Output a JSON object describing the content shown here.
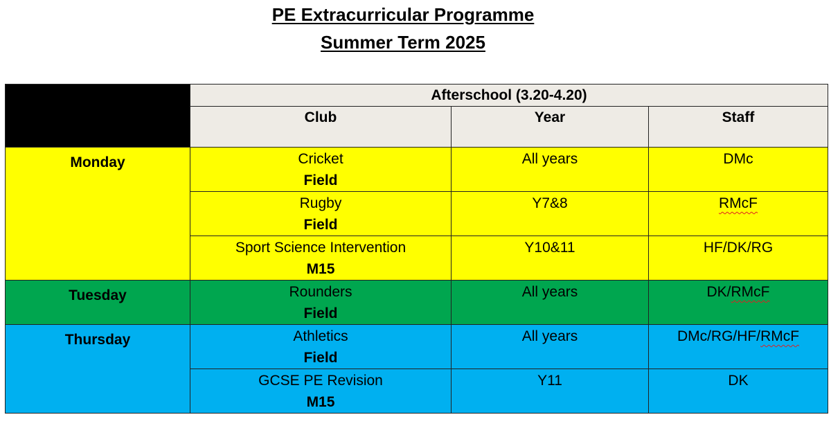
{
  "title_line1": "PE Extracurricular Programme",
  "title_line2": "Summer Term 2025",
  "table": {
    "session_header": "Afterschool (3.20-4.20)",
    "columns": [
      "Club",
      "Year",
      "Staff"
    ],
    "days": [
      {
        "day": "Monday",
        "color": "#ffff00",
        "rows": [
          {
            "club": "Cricket",
            "location": "Field",
            "year": "All years",
            "staff": "DMc"
          },
          {
            "club": "Rugby",
            "location": "Field",
            "year": "Y7&8",
            "staff": "RMcF"
          },
          {
            "club": "Sport Science Intervention",
            "location": "M15",
            "year": "Y10&11",
            "staff": "HF/DK/RG"
          }
        ]
      },
      {
        "day": "Tuesday",
        "color": "#00a64f",
        "rows": [
          {
            "club": "Rounders",
            "location": "Field",
            "year": "All years",
            "staff_prefix": "DK/",
            "staff_flagged": "RMcF"
          }
        ]
      },
      {
        "day": "Thursday",
        "color": "#00b0f0",
        "rows": [
          {
            "club": "Athletics",
            "location": "Field",
            "year": "All years",
            "staff_prefix": "DMc/RG/HF/",
            "staff_flagged": "RMcF"
          },
          {
            "club": "GCSE PE Revision",
            "location": "M15",
            "year": "Y11",
            "staff": "DK"
          }
        ]
      }
    ]
  }
}
